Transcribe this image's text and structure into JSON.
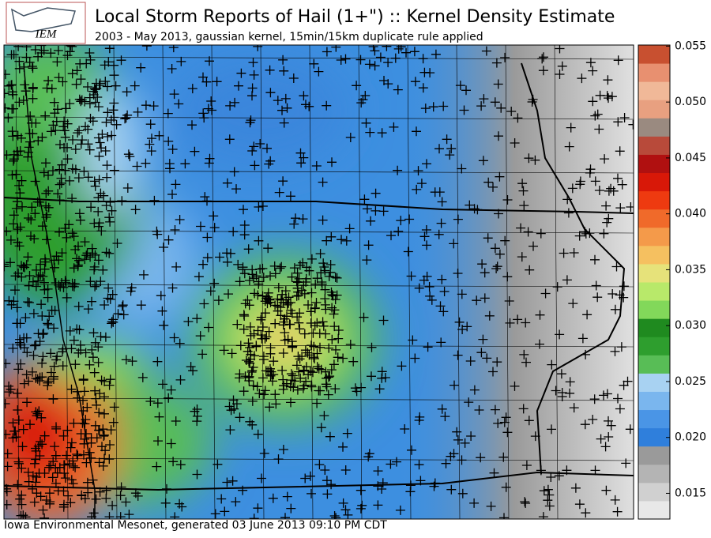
{
  "header": {
    "logo_text": "IEM",
    "title": "Local Storm Reports of Hail (1+\") :: Kernel Density Estimate",
    "subtitle": "2003 - May 2013, gaussian kernel, 15min/15km duplicate rule applied"
  },
  "footer": "Iowa Environmental Mesonet, generated 03 June 2013 09:10 PM CDT",
  "colorbar": {
    "range": [
      0.0127,
      0.0551
    ],
    "ticks": [
      0.015,
      {
        "value": 0.02,
        "label": "0.020"
      },
      0.025,
      {
        "value": 0.03,
        "label": "0.030"
      },
      0.035,
      {
        "value": 0.04,
        "label": "0.040"
      },
      0.045,
      {
        "value": 0.05,
        "label": "0.050"
      },
      0.055
    ],
    "colors": [
      "#e8e8e8",
      "#d0d0d0",
      "#b4b4b4",
      "#9a9a9a",
      "#2f7fdc",
      "#4a95e6",
      "#7ab6ee",
      "#a8d2f2",
      "#58bd56",
      "#2e9e2e",
      "#1f8a1f",
      "#82d85a",
      "#b8e96a",
      "#e6e27a",
      "#f5c060",
      "#f49a4a",
      "#f06a2a",
      "#ee3a10",
      "#d81808",
      "#b01010",
      "#b84a3a",
      "#9a8a80",
      "#e8a080",
      "#f0b898",
      "#e89070",
      "#c85030"
    ]
  }
}
